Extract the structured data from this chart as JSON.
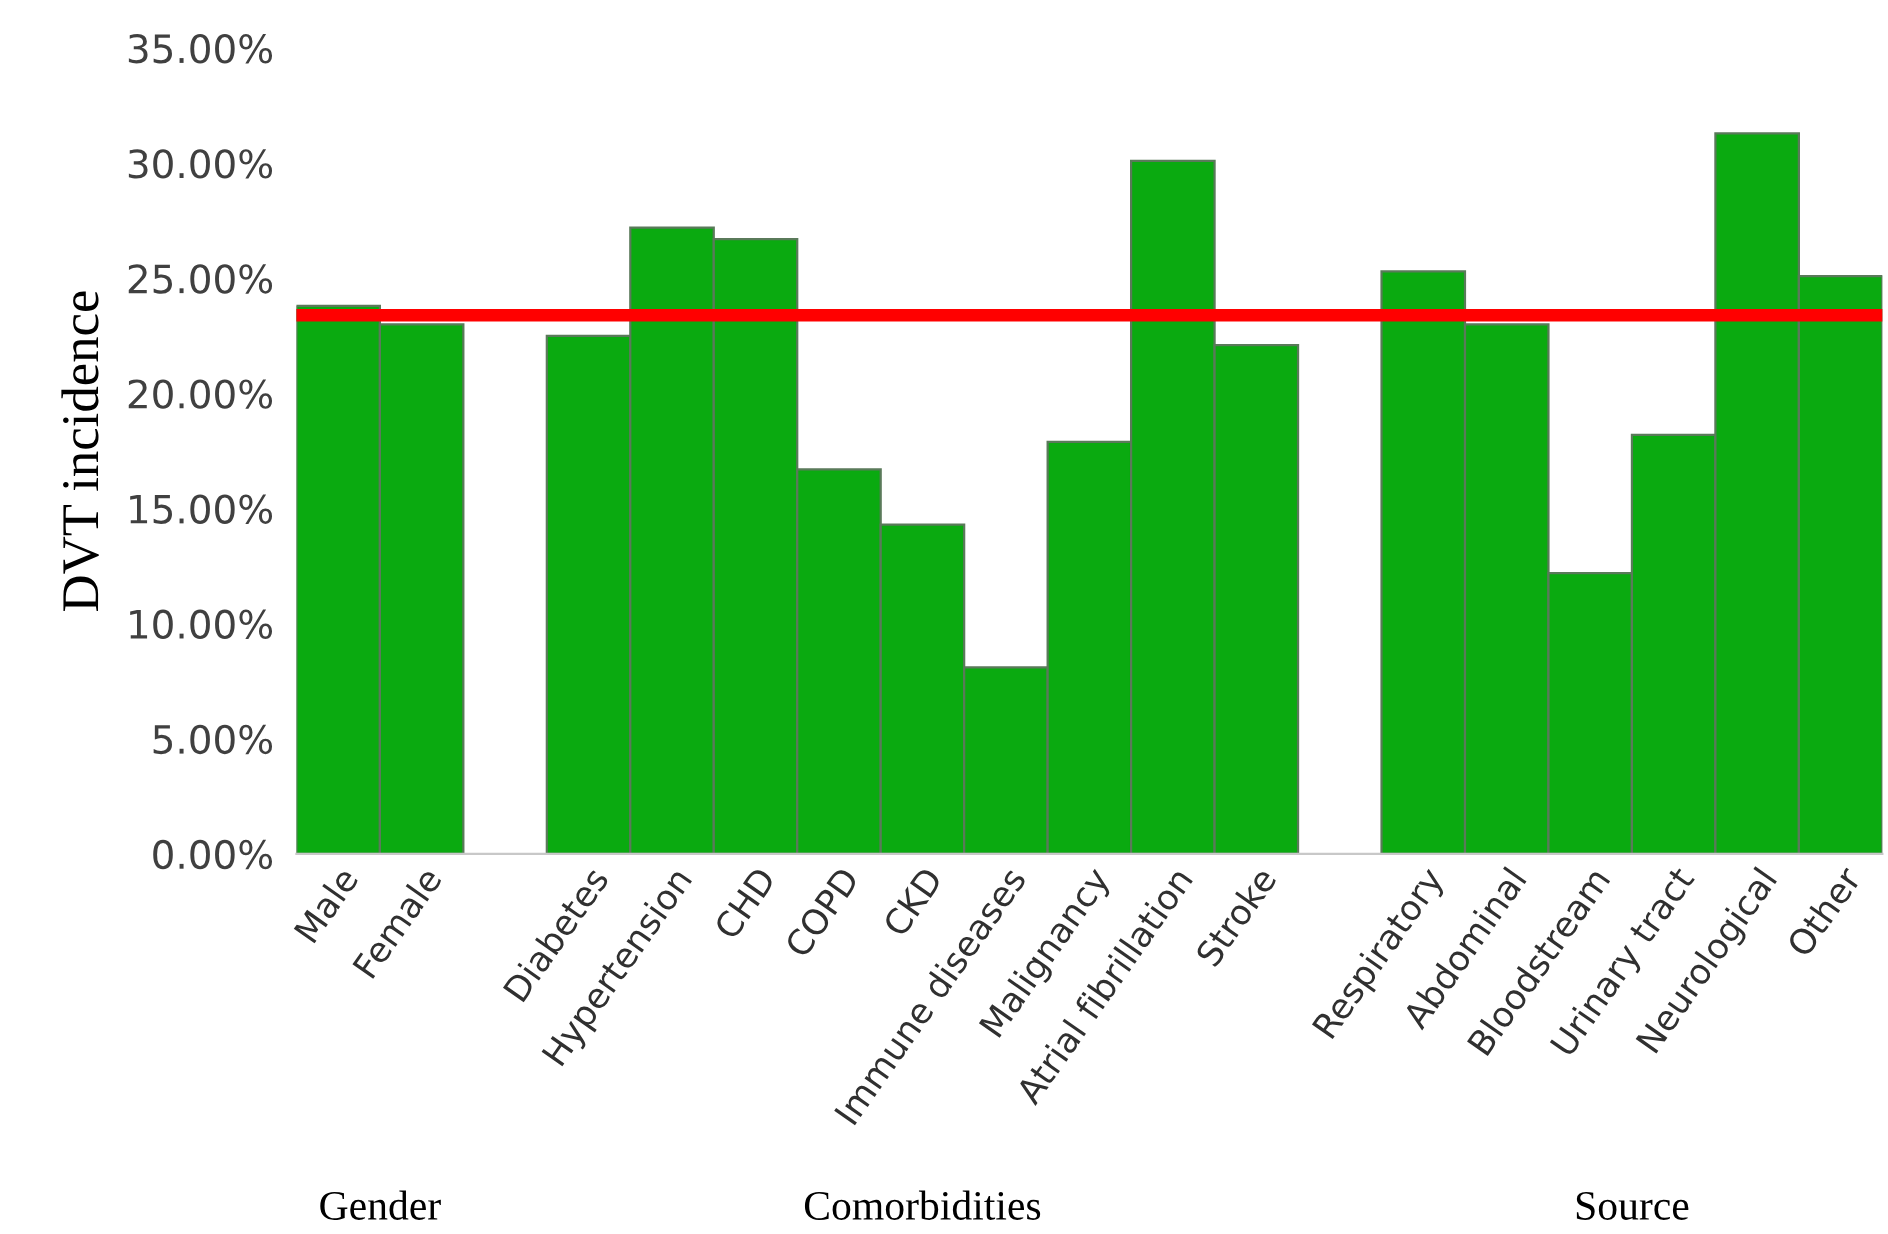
{
  "chart_data": {
    "type": "bar",
    "ylabel": "DVT incidence",
    "categories": [
      "Male",
      "Female",
      null,
      "Diabetes",
      "Hypertension",
      "CHD",
      "COPD",
      "CKD",
      "Immune diseases",
      "Malignancy",
      "Atrial fibrillation",
      "Stroke",
      null,
      "Respiratory",
      "Abdominal",
      "Bloodstream",
      "Urinary tract",
      "Neurological",
      "Other"
    ],
    "series": [
      {
        "color": "#0aaa10",
        "values": [
          23.8,
          23.0,
          null,
          22.5,
          27.2,
          26.7,
          16.7,
          14.3,
          8.1,
          17.9,
          30.1,
          22.1,
          null,
          25.3,
          23.0,
          12.2,
          18.2,
          31.3,
          25.1
        ]
      }
    ],
    "ylim": [
      0,
      35
    ],
    "yticks": [
      {
        "value": 0,
        "label": "0.00%"
      },
      {
        "value": 5,
        "label": "5.00%"
      },
      {
        "value": 10,
        "label": "10.00%"
      },
      {
        "value": 15,
        "label": "15.00%"
      },
      {
        "value": 20,
        "label": "20.00%"
      },
      {
        "value": 25,
        "label": "25.00%"
      },
      {
        "value": 30,
        "label": "30.00%"
      },
      {
        "value": 35,
        "label": "35.00%"
      }
    ],
    "ref_lines": [
      {
        "axis": "y",
        "value": 23.4,
        "color": "#ff0000",
        "line_style": "solid"
      }
    ],
    "annotations": [
      "Gender",
      "Comorbidities",
      "Source"
    ],
    "grid": false,
    "legend": false
  }
}
